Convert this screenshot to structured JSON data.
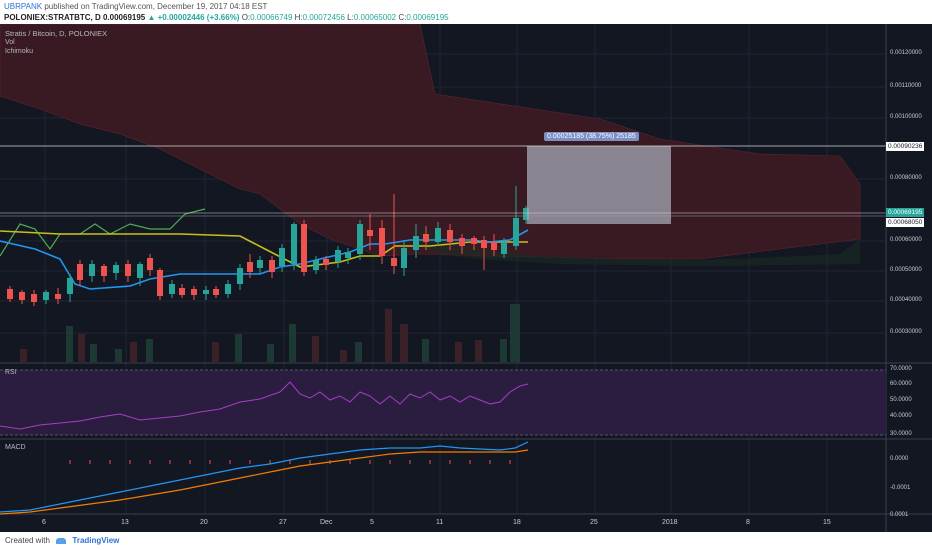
{
  "header": {
    "user": "UBRPANK",
    "published": "published on TradingView.com, December 19, 2017 04:18 EST",
    "symbol": "POLONIEX:STRATBTC, D",
    "price": "0.00069195",
    "change": "▲ +0.00002446 (+3.66%)",
    "o_label": "O:",
    "o": "0.00066749",
    "h_label": "H:",
    "h": "0.00072456",
    "l_label": "L:",
    "l": "0.00065002",
    "c_label": "C:",
    "c": "0.00069195"
  },
  "legend": {
    "title": "Stratis / Bitcoin, D, POLONIEX",
    "vol": "Vol",
    "ichimoku": "Ichimoku"
  },
  "panes": {
    "rsi": "RSI",
    "macd": "MACD"
  },
  "price_axis": [
    "0.00120000",
    "0.00110000",
    "0.00100000",
    "0.00080000",
    "0.00060000",
    "0.00050000",
    "0.00040000",
    "0.00030000"
  ],
  "price_tags": {
    "upper": "0.00090236",
    "last": "0.00069195",
    "lower": "0.00068050"
  },
  "rsi_axis": [
    "70.0000",
    "60.0000",
    "50.0000",
    "40.0000",
    "30.0000"
  ],
  "macd_axis": [
    "0.0000",
    "-0.0001",
    "0.0001"
  ],
  "x_axis": [
    "6",
    "13",
    "20",
    "27",
    "Dec",
    "5",
    "11",
    "18",
    "25",
    "2018",
    "8",
    "15"
  ],
  "measure": "0.00025185 (38.75%) 25185",
  "footer": {
    "created": "Created with",
    "brand": "TradingView"
  },
  "colors": {
    "background": "#131722",
    "candle_up": "#26a69a",
    "candle_down": "#ef5350",
    "cloud": "#3a1a22",
    "tenkan": "#2196f3",
    "kijun": "#c9c017",
    "chikou": "#4caf50",
    "rsi_bg": "#2a1d3f",
    "rsi_line": "#a43fc4",
    "macd_line": "#2196f3",
    "signal_line": "#f57c00"
  }
}
